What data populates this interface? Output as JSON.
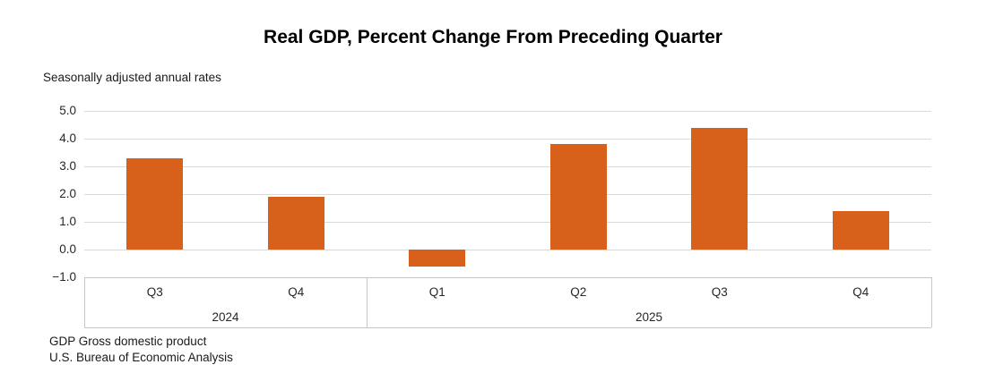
{
  "chart_data": {
    "type": "bar",
    "title": "Real GDP, Percent Change From Preceding Quarter",
    "subtitle": "Seasonally adjusted annual rates",
    "categories": [
      "Q3",
      "Q4",
      "Q1",
      "Q2",
      "Q3",
      "Q4"
    ],
    "values": [
      3.3,
      1.9,
      -0.6,
      3.8,
      4.4,
      1.4
    ],
    "year_groups": [
      {
        "label": "2024",
        "count": 2
      },
      {
        "label": "2025",
        "count": 4
      }
    ],
    "xlabel": "",
    "ylabel": "",
    "ylim": [
      -1.0,
      5.0
    ],
    "yticks": [
      5.0,
      4.0,
      3.0,
      2.0,
      1.0,
      0.0,
      -1.0
    ],
    "ytick_labels": [
      "5.0",
      "4.0",
      "3.0",
      "2.0",
      "1.0",
      "0.0",
      "−1.0"
    ],
    "grid": true,
    "legend": "none",
    "bar_color": "#D7611A",
    "gridline_color": "#D9D9D9",
    "axis_border_color": "#C6C6C6"
  },
  "footnotes": {
    "0": "GDP Gross domestic product",
    "1": "U.S. Bureau of Economic Analysis"
  }
}
